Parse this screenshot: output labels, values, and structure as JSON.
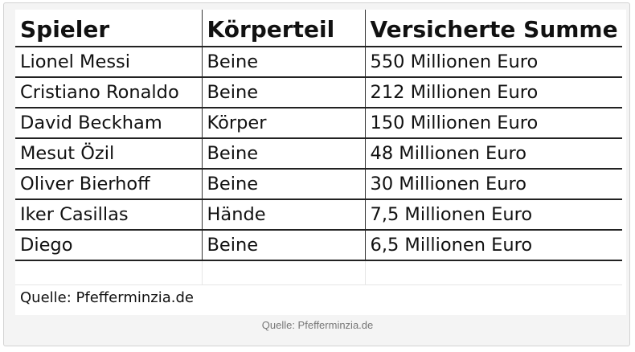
{
  "table": {
    "headers": [
      "Spieler",
      "Körperteil",
      "Versicherte Summe"
    ],
    "rows": [
      [
        "Lionel Messi",
        "Beine",
        "550 Millionen Euro"
      ],
      [
        "Cristiano Ronaldo",
        "Beine",
        "212 Millionen Euro"
      ],
      [
        "David Beckham",
        "Körper",
        "150 Millionen Euro"
      ],
      [
        "Mesut Özil",
        "Beine",
        "48 Millionen Euro"
      ],
      [
        "Oliver Bierhoff",
        "Beine",
        "30 Millionen Euro"
      ],
      [
        "Iker Casillas",
        "Hände",
        "7,5 Millionen Euro"
      ],
      [
        "Diego",
        "Beine",
        "6,5 Millionen Euro"
      ]
    ]
  },
  "image_source_text": "Quelle: Pfefferminzia.de",
  "caption": "Quelle: Pfefferminzia.de"
}
